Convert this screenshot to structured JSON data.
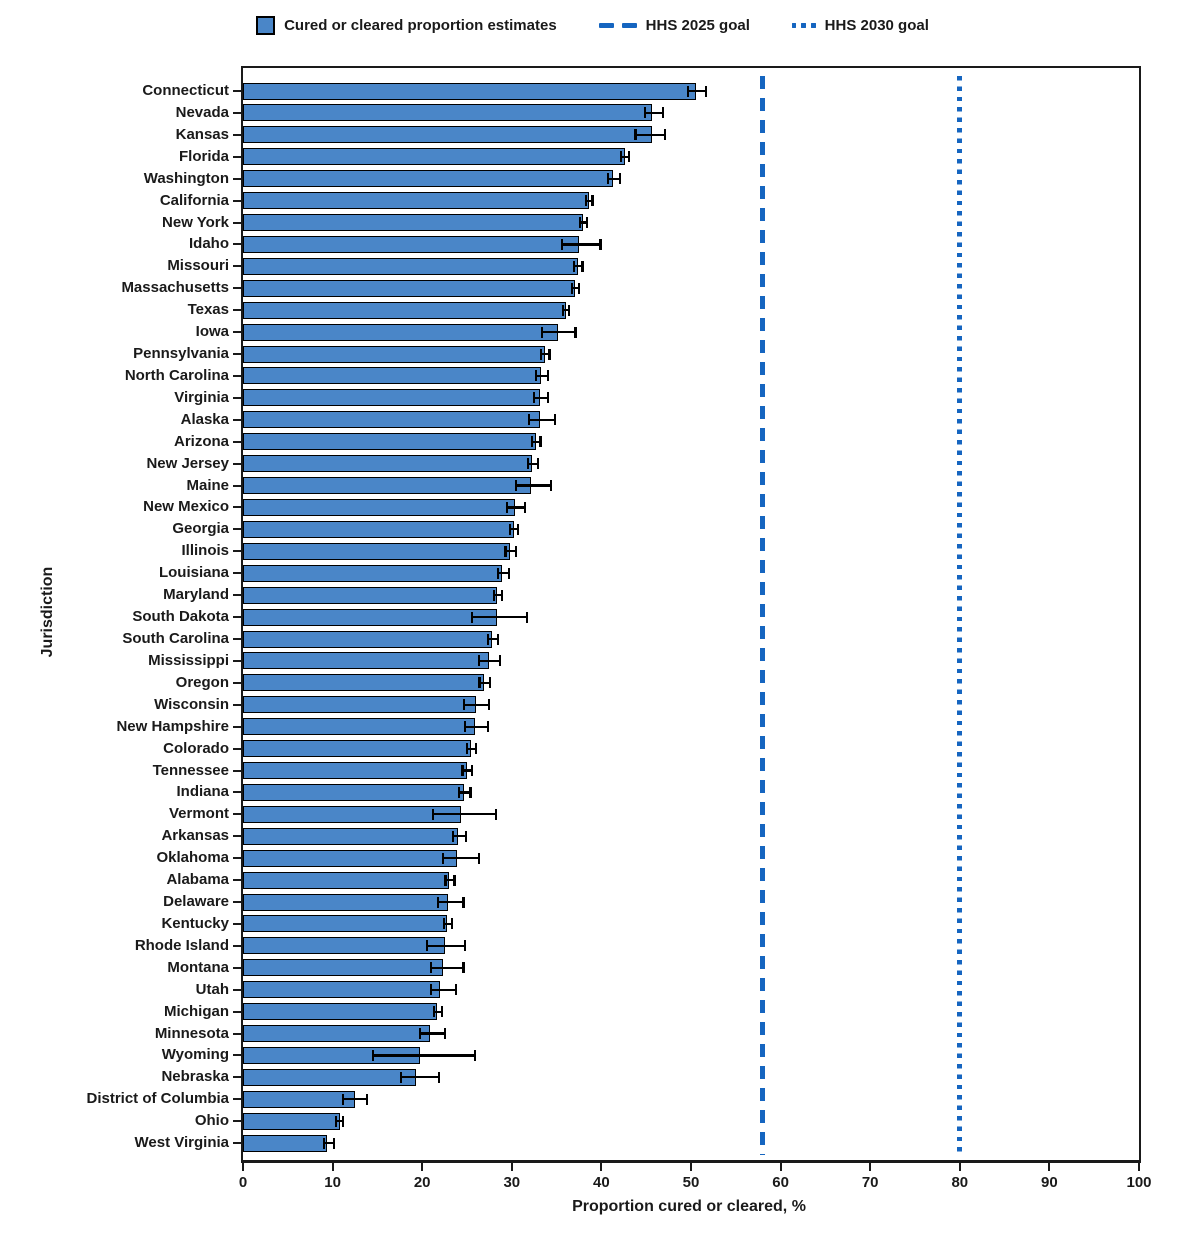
{
  "colors": {
    "bar_fill": "#4a86c8",
    "bar_border": "#000000",
    "error_bar": "#000000",
    "goal_line": "#1565c0",
    "axis": "#1a1a1a"
  },
  "chart_data": {
    "type": "bar",
    "orientation": "horizontal",
    "title": "",
    "xlabel": "Proportion cured or cleared, %",
    "ylabel": "Jurisdiction",
    "xlim": [
      0,
      100
    ],
    "xticks": [
      0,
      10,
      20,
      30,
      40,
      50,
      60,
      70,
      80,
      90,
      100
    ],
    "grid": false,
    "legend_position": "top",
    "series_label": "Cured or cleared proportion estimates",
    "error_bars": "95% CI",
    "reference_lines": [
      {
        "label": "HHS 2025 goal",
        "value": 58,
        "style": "dashed"
      },
      {
        "label": "HHS 2030 goal",
        "value": 80,
        "style": "dotted"
      }
    ],
    "points": [
      {
        "jurisdiction": "Connecticut",
        "value": 50.6,
        "ci_low": 49.7,
        "ci_high": 51.7
      },
      {
        "jurisdiction": "Nevada",
        "value": 45.7,
        "ci_low": 44.9,
        "ci_high": 46.9
      },
      {
        "jurisdiction": "Kansas",
        "value": 45.6,
        "ci_low": 43.8,
        "ci_high": 47.1
      },
      {
        "jurisdiction": "Florida",
        "value": 42.6,
        "ci_low": 42.2,
        "ci_high": 43.1
      },
      {
        "jurisdiction": "Washington",
        "value": 41.3,
        "ci_low": 40.7,
        "ci_high": 42.1
      },
      {
        "jurisdiction": "California",
        "value": 38.6,
        "ci_low": 38.3,
        "ci_high": 39.0
      },
      {
        "jurisdiction": "New York",
        "value": 38.0,
        "ci_low": 37.6,
        "ci_high": 38.4
      },
      {
        "jurisdiction": "Idaho",
        "value": 37.5,
        "ci_low": 35.6,
        "ci_high": 39.9
      },
      {
        "jurisdiction": "Missouri",
        "value": 37.4,
        "ci_low": 36.9,
        "ci_high": 37.9
      },
      {
        "jurisdiction": "Massachusetts",
        "value": 37.1,
        "ci_low": 36.7,
        "ci_high": 37.5
      },
      {
        "jurisdiction": "Texas",
        "value": 36.0,
        "ci_low": 35.7,
        "ci_high": 36.4
      },
      {
        "jurisdiction": "Iowa",
        "value": 35.2,
        "ci_low": 33.4,
        "ci_high": 37.1
      },
      {
        "jurisdiction": "Pennsylvania",
        "value": 33.7,
        "ci_low": 33.3,
        "ci_high": 34.2
      },
      {
        "jurisdiction": "North Carolina",
        "value": 33.3,
        "ci_low": 32.7,
        "ci_high": 34.0
      },
      {
        "jurisdiction": "Virginia",
        "value": 33.2,
        "ci_low": 32.5,
        "ci_high": 34.0
      },
      {
        "jurisdiction": "Alaska",
        "value": 33.1,
        "ci_low": 31.9,
        "ci_high": 34.8
      },
      {
        "jurisdiction": "Arizona",
        "value": 32.7,
        "ci_low": 32.3,
        "ci_high": 33.2
      },
      {
        "jurisdiction": "New Jersey",
        "value": 32.3,
        "ci_low": 31.8,
        "ci_high": 32.9
      },
      {
        "jurisdiction": "Maine",
        "value": 32.1,
        "ci_low": 30.5,
        "ci_high": 34.4
      },
      {
        "jurisdiction": "New Mexico",
        "value": 30.4,
        "ci_low": 29.5,
        "ci_high": 31.5
      },
      {
        "jurisdiction": "Georgia",
        "value": 30.2,
        "ci_low": 29.8,
        "ci_high": 30.7
      },
      {
        "jurisdiction": "Illinois",
        "value": 29.8,
        "ci_low": 29.3,
        "ci_high": 30.5
      },
      {
        "jurisdiction": "Louisiana",
        "value": 28.9,
        "ci_low": 28.5,
        "ci_high": 29.7
      },
      {
        "jurisdiction": "Maryland",
        "value": 28.4,
        "ci_low": 28.0,
        "ci_high": 28.9
      },
      {
        "jurisdiction": "South Dakota",
        "value": 28.3,
        "ci_low": 25.6,
        "ci_high": 31.7
      },
      {
        "jurisdiction": "South Carolina",
        "value": 27.8,
        "ci_low": 27.3,
        "ci_high": 28.5
      },
      {
        "jurisdiction": "Mississippi",
        "value": 27.4,
        "ci_low": 26.3,
        "ci_high": 28.7
      },
      {
        "jurisdiction": "Oregon",
        "value": 26.9,
        "ci_low": 26.4,
        "ci_high": 27.6
      },
      {
        "jurisdiction": "Wisconsin",
        "value": 26.0,
        "ci_low": 24.7,
        "ci_high": 27.5
      },
      {
        "jurisdiction": "New Hampshire",
        "value": 25.9,
        "ci_low": 24.8,
        "ci_high": 27.3
      },
      {
        "jurisdiction": "Colorado",
        "value": 25.4,
        "ci_low": 25.0,
        "ci_high": 26.0
      },
      {
        "jurisdiction": "Tennessee",
        "value": 25.0,
        "ci_low": 24.5,
        "ci_high": 25.6
      },
      {
        "jurisdiction": "Indiana",
        "value": 24.7,
        "ci_low": 24.1,
        "ci_high": 25.4
      },
      {
        "jurisdiction": "Vermont",
        "value": 24.3,
        "ci_low": 21.2,
        "ci_high": 28.2
      },
      {
        "jurisdiction": "Arkansas",
        "value": 24.0,
        "ci_low": 23.4,
        "ci_high": 24.9
      },
      {
        "jurisdiction": "Oklahoma",
        "value": 23.9,
        "ci_low": 22.3,
        "ci_high": 26.3
      },
      {
        "jurisdiction": "Alabama",
        "value": 23.0,
        "ci_low": 22.6,
        "ci_high": 23.6
      },
      {
        "jurisdiction": "Delaware",
        "value": 22.9,
        "ci_low": 21.8,
        "ci_high": 24.6
      },
      {
        "jurisdiction": "Kentucky",
        "value": 22.8,
        "ci_low": 22.4,
        "ci_high": 23.3
      },
      {
        "jurisdiction": "Rhode Island",
        "value": 22.6,
        "ci_low": 20.5,
        "ci_high": 24.8
      },
      {
        "jurisdiction": "Montana",
        "value": 22.3,
        "ci_low": 21.0,
        "ci_high": 24.6
      },
      {
        "jurisdiction": "Utah",
        "value": 22.0,
        "ci_low": 21.0,
        "ci_high": 23.8
      },
      {
        "jurisdiction": "Michigan",
        "value": 21.7,
        "ci_low": 21.3,
        "ci_high": 22.2
      },
      {
        "jurisdiction": "Minnesota",
        "value": 20.9,
        "ci_low": 19.8,
        "ci_high": 22.5
      },
      {
        "jurisdiction": "Wyoming",
        "value": 19.8,
        "ci_low": 14.5,
        "ci_high": 25.9
      },
      {
        "jurisdiction": "Nebraska",
        "value": 19.3,
        "ci_low": 17.6,
        "ci_high": 21.9
      },
      {
        "jurisdiction": "District of Columbia",
        "value": 12.5,
        "ci_low": 11.2,
        "ci_high": 13.8
      },
      {
        "jurisdiction": "Ohio",
        "value": 10.8,
        "ci_low": 10.4,
        "ci_high": 11.2
      },
      {
        "jurisdiction": "West Virginia",
        "value": 9.4,
        "ci_low": 9.0,
        "ci_high": 10.2
      }
    ]
  }
}
